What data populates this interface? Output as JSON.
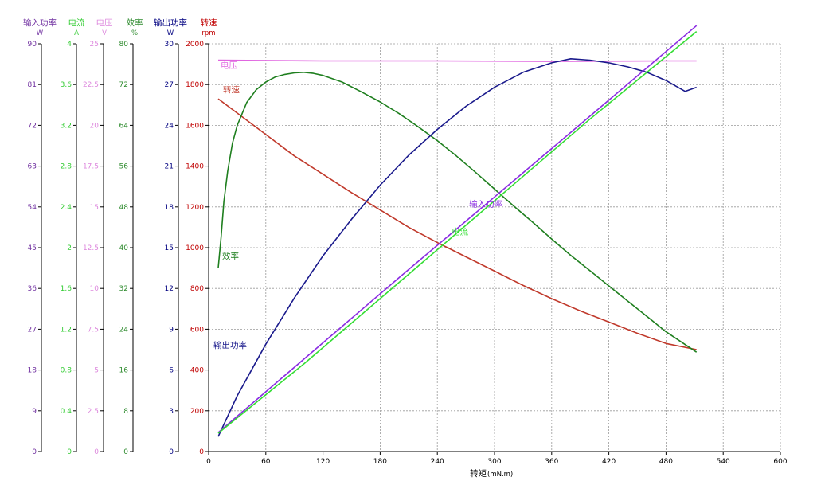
{
  "chart_data": {
    "type": "line",
    "x_axis": {
      "label": "转矩",
      "unit": "(mN.m)",
      "ticks": [
        "0",
        "60",
        "120",
        "180",
        "240",
        "300",
        "360",
        "420",
        "480",
        "540",
        "600"
      ],
      "range": [
        0,
        600
      ]
    },
    "y_axes": [
      {
        "id": "input_power",
        "title": "输入功率",
        "unit": "W",
        "color": "#7030a0",
        "range": [
          0,
          90
        ],
        "ticks": [
          "0",
          "9",
          "18",
          "27",
          "36",
          "45",
          "54",
          "63",
          "72",
          "81",
          "90"
        ]
      },
      {
        "id": "current",
        "title": "电流",
        "unit": "A",
        "color": "#33cc33",
        "range": [
          0,
          4
        ],
        "ticks": [
          "0",
          "0.4",
          "0.8",
          "1.2",
          "1.6",
          "2",
          "2.4",
          "2.8",
          "3.2",
          "3.6",
          "4"
        ]
      },
      {
        "id": "voltage",
        "title": "电压",
        "unit": "V",
        "color": "#dd88dd",
        "range": [
          0,
          25
        ],
        "ticks": [
          "0",
          "2.5",
          "5",
          "7.5",
          "10",
          "12.5",
          "15",
          "17.5",
          "20",
          "22.5",
          "25"
        ]
      },
      {
        "id": "efficiency",
        "title": "效率",
        "unit": "%",
        "color": "#2e8b2e",
        "range": [
          0,
          80
        ],
        "ticks": [
          "0",
          "8",
          "16",
          "24",
          "32",
          "40",
          "48",
          "56",
          "64",
          "72",
          "80"
        ]
      },
      {
        "id": "output_power",
        "title": "输出功率",
        "unit": "W",
        "color": "#000080",
        "range": [
          0,
          30
        ],
        "ticks": [
          "0",
          "3",
          "6",
          "9",
          "12",
          "15",
          "18",
          "21",
          "24",
          "27",
          "30"
        ]
      },
      {
        "id": "speed",
        "title": "转速",
        "unit": "rpm",
        "color": "#c00000",
        "range": [
          0,
          2000
        ],
        "ticks": [
          "0",
          "200",
          "400",
          "600",
          "800",
          "1000",
          "1200",
          "1400",
          "1600",
          "1800",
          "2000"
        ]
      }
    ],
    "grid": true,
    "series": [
      {
        "name": "电压",
        "axis": "voltage",
        "color": "#e066e0",
        "x": [
          10,
          120,
          240,
          360,
          480,
          512
        ],
        "y": [
          24.0,
          23.95,
          23.95,
          23.92,
          23.95,
          23.95
        ]
      },
      {
        "name": "转速",
        "axis": "speed",
        "color": "#c0392b",
        "x": [
          10,
          30,
          60,
          90,
          120,
          150,
          180,
          210,
          240,
          270,
          300,
          330,
          360,
          390,
          420,
          450,
          480,
          512
        ],
        "y": [
          1730,
          1660,
          1555,
          1450,
          1360,
          1270,
          1185,
          1100,
          1025,
          955,
          885,
          815,
          750,
          690,
          635,
          580,
          530,
          500
        ]
      },
      {
        "name": "效率",
        "axis": "efficiency",
        "color": "#1f7f1f",
        "x": [
          10,
          13,
          16,
          20,
          25,
          30,
          40,
          50,
          60,
          70,
          80,
          90,
          100,
          110,
          120,
          140,
          160,
          180,
          200,
          220,
          240,
          260,
          280,
          300,
          320,
          340,
          360,
          380,
          400,
          420,
          440,
          460,
          480,
          500,
          512
        ],
        "y": [
          36,
          42,
          49,
          55,
          60.5,
          64,
          68.5,
          71,
          72.5,
          73.5,
          74,
          74.3,
          74.4,
          74.2,
          73.8,
          72.5,
          70.6,
          68.6,
          66.3,
          63.7,
          61,
          58,
          54.8,
          51.5,
          48.2,
          45,
          41.7,
          38.5,
          35.5,
          32.5,
          29.5,
          26.5,
          23.5,
          21,
          19.5
        ]
      },
      {
        "name": "输出功率",
        "axis": "output_power",
        "color": "#1a1a8c",
        "x": [
          10,
          30,
          60,
          90,
          120,
          150,
          180,
          210,
          240,
          270,
          300,
          330,
          360,
          380,
          400,
          420,
          440,
          460,
          480,
          500,
          512
        ],
        "y": [
          1.1,
          4.1,
          7.9,
          11.3,
          14.4,
          17.1,
          19.6,
          21.8,
          23.7,
          25.4,
          26.8,
          27.9,
          28.6,
          28.9,
          28.8,
          28.6,
          28.3,
          27.9,
          27.3,
          26.5,
          26.8
        ]
      },
      {
        "name": "输入功率",
        "axis": "input_power",
        "color": "#8a2be2",
        "x": [
          10,
          100,
          200,
          300,
          400,
          512
        ],
        "y": [
          4.2,
          20.4,
          38.4,
          56.2,
          74,
          94
        ]
      },
      {
        "name": "电流",
        "axis": "current",
        "color": "#33dd33",
        "x": [
          10,
          100,
          200,
          300,
          400,
          512
        ],
        "y": [
          0.18,
          0.86,
          1.66,
          2.46,
          3.26,
          4.12
        ]
      }
    ],
    "curve_labels": [
      {
        "text": "电压",
        "series": "电压"
      },
      {
        "text": "转速",
        "series": "转速"
      },
      {
        "text": "效率",
        "series": "效率"
      },
      {
        "text": "输出功率",
        "series": "输出功率"
      },
      {
        "text": "输入功率",
        "series": "输入功率"
      },
      {
        "text": "电流",
        "series": "电流"
      }
    ]
  }
}
